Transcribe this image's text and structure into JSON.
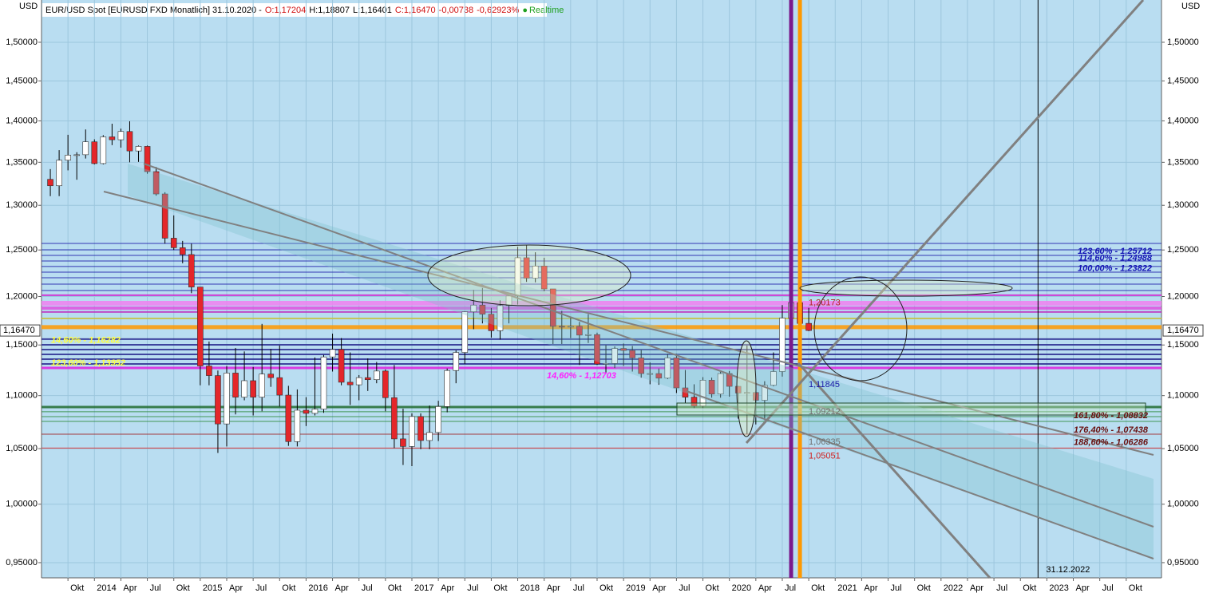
{
  "chart_data": {
    "type": "candlestick",
    "header": {
      "symbol": "EUR/USD Spot [EURUSD FXD Monatlich] 31.10.2020 -",
      "open": "O:1,17204",
      "high": "H:1,18807",
      "low": "L:1,16401",
      "close": "C:1,16470",
      "change": "-0,00738",
      "change_pct": "-0,62923%",
      "status": "Realtime"
    },
    "y_unit": "USD",
    "log": true,
    "grid": true,
    "up_color": "#ffffff",
    "down_color": "#e4262a",
    "x": [
      "2013-08",
      "2013-09",
      "2013-10",
      "2013-11",
      "2013-12",
      "2014-01",
      "2014-02",
      "2014-03",
      "2014-04",
      "2014-05",
      "2014-06",
      "2014-07",
      "2014-08",
      "2014-09",
      "2014-10",
      "2014-11",
      "2014-12",
      "2015-01",
      "2015-02",
      "2015-03",
      "2015-04",
      "2015-05",
      "2015-06",
      "2015-07",
      "2015-08",
      "2015-09",
      "2015-10",
      "2015-11",
      "2015-12",
      "2016-01",
      "2016-02",
      "2016-03",
      "2016-04",
      "2016-05",
      "2016-06",
      "2016-07",
      "2016-08",
      "2016-09",
      "2016-10",
      "2016-11",
      "2016-12",
      "2017-01",
      "2017-02",
      "2017-03",
      "2017-04",
      "2017-05",
      "2017-06",
      "2017-07",
      "2017-08",
      "2017-09",
      "2017-10",
      "2017-11",
      "2017-12",
      "2018-01",
      "2018-02",
      "2018-03",
      "2018-04",
      "2018-05",
      "2018-06",
      "2018-07",
      "2018-08",
      "2018-09",
      "2018-10",
      "2018-11",
      "2018-12",
      "2019-01",
      "2019-02",
      "2019-03",
      "2019-04",
      "2019-05",
      "2019-06",
      "2019-07",
      "2019-08",
      "2019-09",
      "2019-10",
      "2019-11",
      "2019-12",
      "2020-01",
      "2020-02",
      "2020-03",
      "2020-04",
      "2020-05",
      "2020-06",
      "2020-07",
      "2020-08",
      "2020-09",
      "2020-10"
    ],
    "open": [
      1.33,
      1.3225,
      1.3525,
      1.3585,
      1.359,
      1.3745,
      1.3485,
      1.3805,
      1.377,
      1.387,
      1.3635,
      1.369,
      1.339,
      1.313,
      1.263,
      1.2525,
      1.245,
      1.21,
      1.129,
      1.1195,
      1.073,
      1.122,
      1.0985,
      1.1145,
      1.0985,
      1.121,
      1.1175,
      1.1005,
      1.0565,
      1.086,
      1.083,
      1.087,
      1.138,
      1.1455,
      1.113,
      1.1105,
      1.1175,
      1.1155,
      1.124,
      1.098,
      1.059,
      1.052,
      1.08,
      1.0575,
      1.065,
      1.0895,
      1.1245,
      1.1425,
      1.184,
      1.191,
      1.1815,
      1.1645,
      1.1905,
      1.2005,
      1.2415,
      1.2195,
      1.2325,
      1.208,
      1.169,
      1.1685,
      1.169,
      1.16,
      1.1605,
      1.131,
      1.1315,
      1.1465,
      1.1445,
      1.137,
      1.1215,
      1.1215,
      1.117,
      1.137,
      1.1075,
      1.0985,
      1.09,
      1.115,
      1.1015,
      1.1215,
      1.109,
      1.1025,
      1.103,
      1.0955,
      1.11,
      1.1235,
      1.1775,
      1.1935,
      1.17204
    ],
    "high": [
      1.342,
      1.3645,
      1.383,
      1.362,
      1.3895,
      1.3775,
      1.3825,
      1.3965,
      1.3905,
      1.3995,
      1.37,
      1.37,
      1.3445,
      1.315,
      1.2885,
      1.26,
      1.257,
      1.21,
      1.1535,
      1.1245,
      1.129,
      1.147,
      1.1435,
      1.128,
      1.1715,
      1.146,
      1.1495,
      1.1095,
      1.106,
      1.0985,
      1.1375,
      1.14,
      1.1615,
      1.157,
      1.1425,
      1.12,
      1.1365,
      1.133,
      1.1255,
      1.13,
      1.0875,
      1.083,
      1.083,
      1.0905,
      1.095,
      1.1265,
      1.1445,
      1.1845,
      1.207,
      1.209,
      1.188,
      1.196,
      1.2025,
      1.2535,
      1.2555,
      1.2475,
      1.2415,
      1.208,
      1.185,
      1.179,
      1.1735,
      1.1815,
      1.1625,
      1.15,
      1.1485,
      1.1515,
      1.149,
      1.145,
      1.1325,
      1.1265,
      1.141,
      1.141,
      1.125,
      1.111,
      1.118,
      1.1175,
      1.124,
      1.124,
      1.1095,
      1.1495,
      1.104,
      1.114,
      1.1425,
      1.191,
      1.201,
      1.201,
      1.18807
    ],
    "low": [
      1.3105,
      1.3105,
      1.3405,
      1.3295,
      1.3545,
      1.3475,
      1.3475,
      1.3705,
      1.3675,
      1.35,
      1.3505,
      1.3365,
      1.311,
      1.257,
      1.25,
      1.2355,
      1.2035,
      1.11,
      1.11,
      1.046,
      1.052,
      1.082,
      1.0955,
      1.081,
      1.085,
      1.1085,
      1.0895,
      1.0525,
      1.052,
      1.071,
      1.081,
      1.0835,
      1.1235,
      1.11,
      1.091,
      1.0955,
      1.1045,
      1.112,
      1.085,
      1.0505,
      1.035,
      1.034,
      1.0495,
      1.0495,
      1.057,
      1.084,
      1.112,
      1.131,
      1.166,
      1.172,
      1.1575,
      1.1555,
      1.172,
      1.1915,
      1.2155,
      1.215,
      1.2055,
      1.151,
      1.151,
      1.157,
      1.13,
      1.152,
      1.13,
      1.1215,
      1.127,
      1.129,
      1.1235,
      1.1175,
      1.111,
      1.1105,
      1.116,
      1.1025,
      1.0925,
      1.088,
      1.088,
      1.098,
      1.098,
      1.099,
      1.078,
      1.0636,
      1.0725,
      1.0765,
      1.109,
      1.1185,
      1.171,
      1.161,
      1.16401
    ],
    "close": [
      1.3225,
      1.3525,
      1.3585,
      1.359,
      1.3745,
      1.3485,
      1.3805,
      1.377,
      1.387,
      1.3635,
      1.369,
      1.339,
      1.313,
      1.263,
      1.2525,
      1.245,
      1.21,
      1.129,
      1.1195,
      1.073,
      1.122,
      1.0985,
      1.1145,
      1.0985,
      1.121,
      1.1175,
      1.1005,
      1.0565,
      1.086,
      1.083,
      1.087,
      1.138,
      1.1455,
      1.113,
      1.1105,
      1.1175,
      1.1155,
      1.124,
      1.098,
      1.059,
      1.052,
      1.08,
      1.0575,
      1.065,
      1.0895,
      1.1245,
      1.1425,
      1.184,
      1.191,
      1.1815,
      1.1645,
      1.1905,
      1.2005,
      1.2415,
      1.2195,
      1.2325,
      1.208,
      1.169,
      1.1685,
      1.169,
      1.16,
      1.1605,
      1.131,
      1.1315,
      1.1465,
      1.1445,
      1.137,
      1.1215,
      1.1215,
      1.117,
      1.137,
      1.1075,
      1.0985,
      1.09,
      1.115,
      1.1015,
      1.1215,
      1.109,
      1.1025,
      1.103,
      1.0955,
      1.11,
      1.1235,
      1.1775,
      1.1935,
      1.172,
      1.1647
    ],
    "xlim": [
      "2013-07",
      "2024-02"
    ],
    "xticks": [
      {
        "value": "2013-10",
        "label": "Okt"
      },
      {
        "value": "2014-01",
        "label": "2014"
      },
      {
        "value": "2014-04",
        "label": "Apr"
      },
      {
        "value": "2014-07",
        "label": "Jul"
      },
      {
        "value": "2014-10",
        "label": "Okt"
      },
      {
        "value": "2015-01",
        "label": "2015"
      },
      {
        "value": "2015-04",
        "label": "Apr"
      },
      {
        "value": "2015-07",
        "label": "Jul"
      },
      {
        "value": "2015-10",
        "label": "Okt"
      },
      {
        "value": "2016-01",
        "label": "2016"
      },
      {
        "value": "2016-04",
        "label": "Apr"
      },
      {
        "value": "2016-07",
        "label": "Jul"
      },
      {
        "value": "2016-10",
        "label": "Okt"
      },
      {
        "value": "2017-01",
        "label": "2017"
      },
      {
        "value": "2017-04",
        "label": "Apr"
      },
      {
        "value": "2017-07",
        "label": "Jul"
      },
      {
        "value": "2017-10",
        "label": "Okt"
      },
      {
        "value": "2018-01",
        "label": "2018"
      },
      {
        "value": "2018-04",
        "label": "Apr"
      },
      {
        "value": "2018-07",
        "label": "Jul"
      },
      {
        "value": "2018-10",
        "label": "Okt"
      },
      {
        "value": "2019-01",
        "label": "2019"
      },
      {
        "value": "2019-04",
        "label": "Apr"
      },
      {
        "value": "2019-07",
        "label": "Jul"
      },
      {
        "value": "2019-10",
        "label": "Okt"
      },
      {
        "value": "2020-01",
        "label": "2020"
      },
      {
        "value": "2020-04",
        "label": "Apr"
      },
      {
        "value": "2020-07",
        "label": "Jul"
      },
      {
        "value": "2020-10",
        "label": "Okt"
      },
      {
        "value": "2021-01",
        "label": "2021"
      },
      {
        "value": "2021-04",
        "label": "Apr"
      },
      {
        "value": "2021-07",
        "label": "Jul"
      },
      {
        "value": "2021-10",
        "label": "Okt"
      },
      {
        "value": "2022-01",
        "label": "2022"
      },
      {
        "value": "2022-04",
        "label": "Apr"
      },
      {
        "value": "2022-07",
        "label": "Jul"
      },
      {
        "value": "2022-10",
        "label": "Okt"
      },
      {
        "value": "2023-01",
        "label": "2023"
      },
      {
        "value": "2023-04",
        "label": "Apr"
      },
      {
        "value": "2023-07",
        "label": "Jul"
      },
      {
        "value": "2023-10",
        "label": "Okt"
      }
    ],
    "ylim": [
      0.9374,
      1.5567
    ],
    "yticks": [
      {
        "value": 0.95,
        "label": "0,95000"
      },
      {
        "value": 1.0,
        "label": "1,00000"
      },
      {
        "value": 1.05,
        "label": "1,05000"
      },
      {
        "value": 1.1,
        "label": "1,10000"
      },
      {
        "value": 1.15,
        "label": "1,15000"
      },
      {
        "value": 1.2,
        "label": "1,20000"
      },
      {
        "value": 1.25,
        "label": "1,25000"
      },
      {
        "value": 1.3,
        "label": "1,30000"
      },
      {
        "value": 1.35,
        "label": "1,35000"
      },
      {
        "value": 1.4,
        "label": "1,40000"
      },
      {
        "value": 1.45,
        "label": "1,45000"
      },
      {
        "value": 1.5,
        "label": "1,50000"
      }
    ],
    "last_price": {
      "value": 1.1647,
      "label": "1,16470"
    },
    "levels": [
      {
        "value": 1.2572,
        "color": "#1a1aa8",
        "width": 1
      },
      {
        "value": 1.2502,
        "color": "#1a1aa8",
        "width": 1
      },
      {
        "value": 1.2441,
        "color": "#1a1aa8",
        "width": 1
      },
      {
        "value": 1.238,
        "color": "#1a1aa8",
        "width": 1
      },
      {
        "value": 1.232,
        "color": "#1a1aa8",
        "width": 1
      },
      {
        "value": 1.2259,
        "color": "#1a1aa8",
        "width": 1
      },
      {
        "value": 1.2199,
        "color": "#1a1aa8",
        "width": 1
      },
      {
        "value": 1.2131,
        "color": "#1a1aa8",
        "width": 1
      },
      {
        "value": 1.2063,
        "color": "#1a1aa8",
        "width": 1
      },
      {
        "value": 1.2013,
        "color": "#d020d0",
        "width": 2
      },
      {
        "value": 1.1929,
        "color": "#f080f0",
        "width": 6
      },
      {
        "value": 1.1879,
        "color": "#e050e0",
        "width": 4
      },
      {
        "value": 1.1838,
        "color": "#c030c0",
        "width": 2
      },
      {
        "value": 1.1771,
        "color": "#c8c040",
        "width": 2
      },
      {
        "value": 1.1681,
        "color": "#ff9900",
        "width": 5
      },
      {
        "value": 1.1559,
        "color": "#2a2a90",
        "width": 2
      },
      {
        "value": 1.1502,
        "color": "#2a2a90",
        "width": 2
      },
      {
        "value": 1.1454,
        "color": "#2a2a90",
        "width": 2
      },
      {
        "value": 1.1406,
        "color": "#2a2a90",
        "width": 2
      },
      {
        "value": 1.1358,
        "color": "#2a2a90",
        "width": 2
      },
      {
        "value": 1.131,
        "color": "#2a2a90",
        "width": 2
      },
      {
        "value": 1.1271,
        "color": "#e020e0",
        "width": 3
      },
      {
        "value": 1.089,
        "color": "#1f6b2e",
        "width": 3
      },
      {
        "value": 1.0845,
        "color": "#2e8b3a",
        "width": 1
      },
      {
        "value": 1.0799,
        "color": "#2e8b3a",
        "width": 1
      },
      {
        "value": 1.0754,
        "color": "#2e8b3a",
        "width": 1
      },
      {
        "value": 1.0634,
        "color": "#a02020",
        "width": 1
      },
      {
        "value": 1.0505,
        "color": "#e02020",
        "width": 1
      }
    ],
    "vlines": [
      {
        "x": "2020-08",
        "color": "#7a1a8c"
      },
      {
        "x": "2020-09",
        "color": "#ff9900"
      },
      {
        "x": "2022-12",
        "color": "#000000"
      }
    ],
    "vline_label": "31.12.2022",
    "fib_right": {
      "color": "#1414b4",
      "items": [
        {
          "label": "123,60% - 1,25712",
          "value": 1.25712
        },
        {
          "label": "114,60% - 1,24988",
          "value": 1.24988
        },
        {
          "label": "100,00% - 1,23822",
          "value": 1.23822
        }
      ]
    },
    "fib_right_small": {
      "color": "#6a1010",
      "items": [
        {
          "label": "161,80% - 1,08832",
          "value": 1.08832
        },
        {
          "label": "176,40% - 1,07438",
          "value": 1.07438
        },
        {
          "label": "188,60% - 1,06286",
          "value": 1.06286
        }
      ]
    },
    "fib_left": {
      "color": "#ffff40",
      "items": [
        {
          "label": "14,60% - 1,16282",
          "value": 1.16282
        },
        {
          "label": "123,60% - 1,13952",
          "value": 1.13952
        }
      ]
    },
    "fib_mid": {
      "color": "#ff20ff",
      "items": [
        {
          "label": "14,60% - 1,12703",
          "value": 1.12703
        }
      ]
    },
    "price_marks": [
      {
        "label": "1,20173",
        "value": 1.20173,
        "color": "#b02020"
      },
      {
        "label": "1,11845",
        "value": 1.11845,
        "color": "#1a1aa8"
      },
      {
        "label": "1,09212",
        "value": 1.09212,
        "color": "#707070"
      },
      {
        "label": "1,06335",
        "value": 1.06335,
        "color": "#707070"
      },
      {
        "label": "1,05051",
        "value": 1.05051,
        "color": "#d02020"
      }
    ]
  }
}
